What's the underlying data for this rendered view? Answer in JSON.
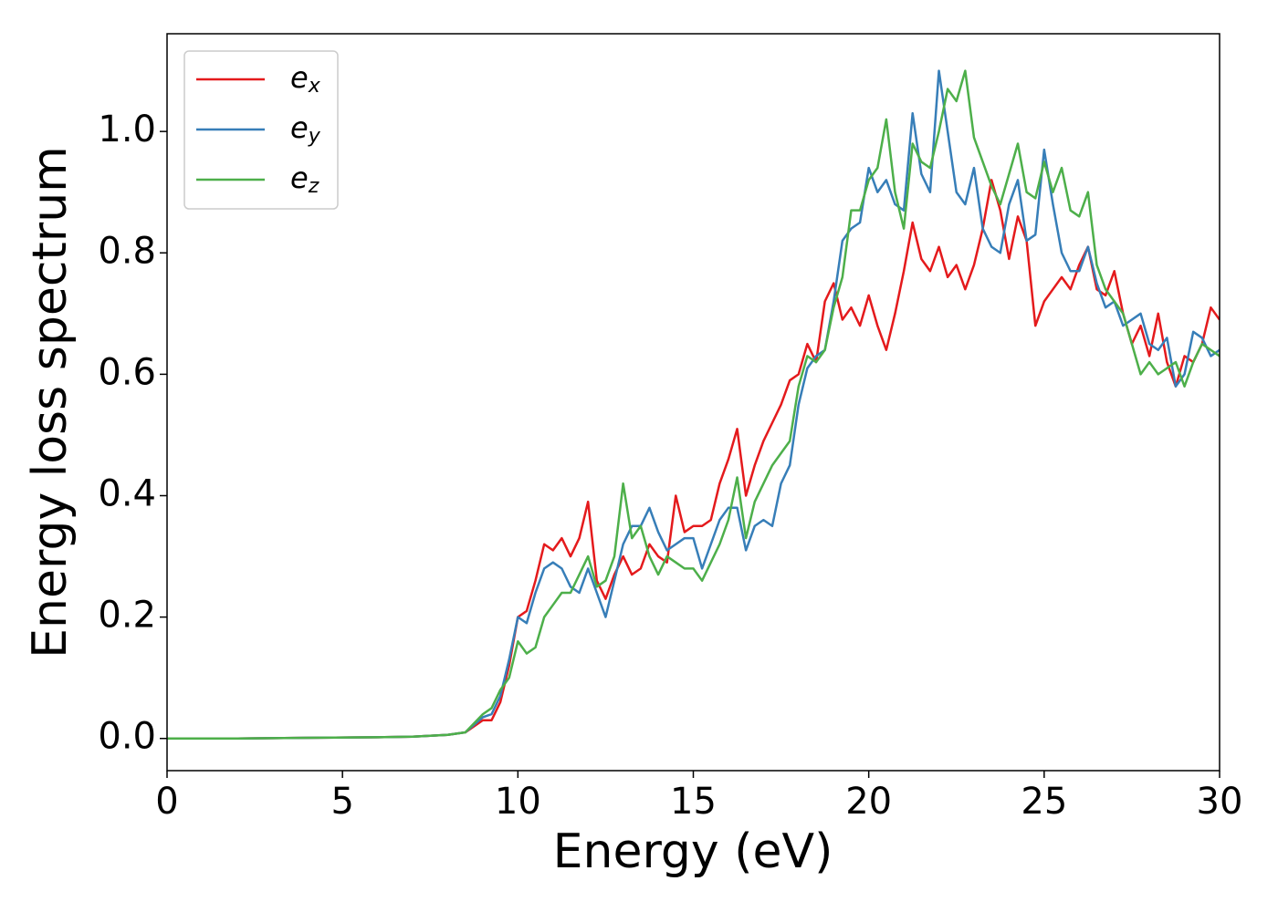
{
  "chart_data": {
    "type": "line",
    "xlabel": "Energy (eV)",
    "ylabel": "Energy loss spectrum",
    "x": [
      0,
      2,
      4,
      6,
      7,
      8,
      8.5,
      9,
      9.25,
      9.5,
      9.75,
      10,
      10.25,
      10.5,
      10.75,
      11,
      11.25,
      11.5,
      11.75,
      12,
      12.25,
      12.5,
      12.75,
      13,
      13.25,
      13.5,
      13.75,
      14,
      14.25,
      14.5,
      14.75,
      15,
      15.25,
      15.5,
      15.75,
      16,
      16.25,
      16.5,
      16.75,
      17,
      17.25,
      17.5,
      17.75,
      18,
      18.25,
      18.5,
      18.75,
      19,
      19.25,
      19.5,
      19.75,
      20,
      20.25,
      20.5,
      20.75,
      21,
      21.25,
      21.5,
      21.75,
      22,
      22.25,
      22.5,
      22.75,
      23,
      23.25,
      23.5,
      23.75,
      24,
      24.25,
      24.5,
      24.75,
      25,
      25.25,
      25.5,
      25.75,
      26,
      26.25,
      26.5,
      26.75,
      27,
      27.25,
      27.5,
      27.75,
      28,
      28.25,
      28.5,
      28.75,
      29,
      29.25,
      29.5,
      29.75,
      30
    ],
    "series": [
      {
        "name": "ex",
        "color": "#e41a1c",
        "values": [
          0,
          0,
          0.001,
          0.002,
          0.003,
          0.006,
          0.01,
          0.03,
          0.03,
          0.06,
          0.12,
          0.2,
          0.21,
          0.26,
          0.32,
          0.31,
          0.33,
          0.3,
          0.33,
          0.39,
          0.26,
          0.23,
          0.27,
          0.3,
          0.27,
          0.28,
          0.32,
          0.3,
          0.29,
          0.4,
          0.34,
          0.35,
          0.35,
          0.36,
          0.42,
          0.46,
          0.51,
          0.4,
          0.45,
          0.49,
          0.52,
          0.55,
          0.59,
          0.6,
          0.65,
          0.62,
          0.72,
          0.75,
          0.69,
          0.71,
          0.68,
          0.73,
          0.68,
          0.64,
          0.7,
          0.77,
          0.85,
          0.79,
          0.77,
          0.81,
          0.76,
          0.78,
          0.74,
          0.78,
          0.84,
          0.92,
          0.87,
          0.79,
          0.86,
          0.82,
          0.68,
          0.72,
          0.74,
          0.76,
          0.74,
          0.78,
          0.81,
          0.74,
          0.73,
          0.77,
          0.7,
          0.65,
          0.68,
          0.63,
          0.7,
          0.62,
          0.58,
          0.63,
          0.62,
          0.65,
          0.71,
          0.69
        ]
      },
      {
        "name": "ey",
        "color": "#377eb8",
        "values": [
          0,
          0,
          0.001,
          0.002,
          0.003,
          0.006,
          0.01,
          0.035,
          0.04,
          0.07,
          0.13,
          0.2,
          0.19,
          0.24,
          0.28,
          0.29,
          0.28,
          0.25,
          0.24,
          0.28,
          0.24,
          0.2,
          0.26,
          0.32,
          0.35,
          0.35,
          0.38,
          0.34,
          0.31,
          0.32,
          0.33,
          0.33,
          0.28,
          0.32,
          0.36,
          0.38,
          0.38,
          0.31,
          0.35,
          0.36,
          0.35,
          0.42,
          0.45,
          0.55,
          0.61,
          0.63,
          0.64,
          0.72,
          0.82,
          0.84,
          0.85,
          0.94,
          0.9,
          0.92,
          0.88,
          0.87,
          1.03,
          0.93,
          0.9,
          1.1,
          1.0,
          0.9,
          0.88,
          0.94,
          0.84,
          0.81,
          0.8,
          0.88,
          0.92,
          0.82,
          0.83,
          0.97,
          0.88,
          0.8,
          0.77,
          0.77,
          0.81,
          0.75,
          0.71,
          0.72,
          0.68,
          0.69,
          0.7,
          0.65,
          0.64,
          0.66,
          0.58,
          0.6,
          0.67,
          0.66,
          0.63,
          0.64
        ]
      },
      {
        "name": "ez",
        "color": "#4daf4a",
        "values": [
          0,
          0,
          0.001,
          0.002,
          0.003,
          0.006,
          0.01,
          0.04,
          0.05,
          0.08,
          0.1,
          0.16,
          0.14,
          0.15,
          0.2,
          0.22,
          0.24,
          0.24,
          0.27,
          0.3,
          0.25,
          0.26,
          0.3,
          0.42,
          0.33,
          0.35,
          0.3,
          0.27,
          0.3,
          0.29,
          0.28,
          0.28,
          0.26,
          0.29,
          0.32,
          0.36,
          0.43,
          0.33,
          0.39,
          0.42,
          0.45,
          0.47,
          0.49,
          0.58,
          0.63,
          0.62,
          0.64,
          0.71,
          0.76,
          0.87,
          0.87,
          0.92,
          0.94,
          1.02,
          0.9,
          0.84,
          0.98,
          0.95,
          0.94,
          1.0,
          1.07,
          1.05,
          1.1,
          0.99,
          0.95,
          0.91,
          0.88,
          0.93,
          0.98,
          0.9,
          0.89,
          0.95,
          0.9,
          0.94,
          0.87,
          0.86,
          0.9,
          0.78,
          0.74,
          0.72,
          0.7,
          0.65,
          0.6,
          0.62,
          0.6,
          0.61,
          0.62,
          0.58,
          0.62,
          0.65,
          0.64,
          0.63
        ]
      }
    ],
    "xlim": [
      0,
      30
    ],
    "xticks": [
      0,
      5,
      10,
      15,
      20,
      25,
      30
    ],
    "ylim": [
      -0.053,
      1.161
    ],
    "yticks": [
      {
        "value": 0,
        "label": "0.0"
      },
      0.2,
      0.4,
      0.6,
      0.8,
      {
        "value": 1,
        "label": "1.0"
      }
    ],
    "legend": "upper left",
    "grid": false
  }
}
